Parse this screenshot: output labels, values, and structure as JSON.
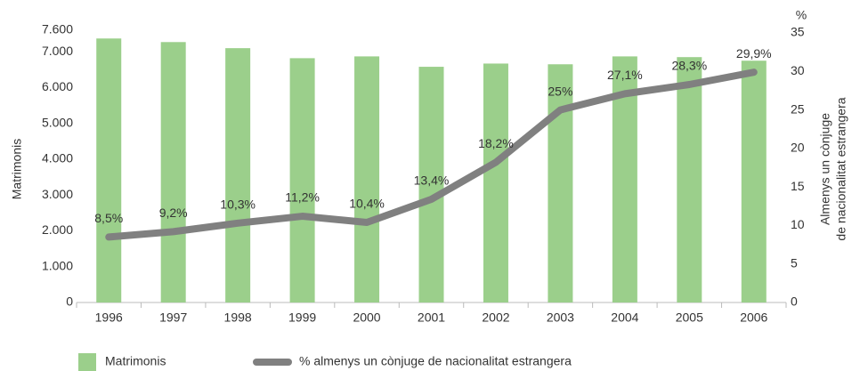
{
  "chart_data": {
    "type": "bar_line",
    "categories": [
      "1996",
      "1997",
      "1998",
      "1999",
      "2000",
      "2001",
      "2002",
      "2003",
      "2004",
      "2005",
      "2006"
    ],
    "series": [
      {
        "name": "Matrimonis",
        "type": "bar",
        "color": "#9bcf8b",
        "values": [
          7370,
          7270,
          7100,
          6820,
          6870,
          6580,
          6670,
          6650,
          6870,
          6850,
          6750
        ]
      },
      {
        "name": "% almenys un cònjuge de nacionalitat estrangera",
        "type": "line",
        "axis": "y2",
        "color": "#808080",
        "values": [
          8.5,
          9.2,
          10.3,
          11.2,
          10.4,
          13.4,
          18.2,
          25,
          27.1,
          28.3,
          29.9
        ],
        "value_labels": [
          "8,5%",
          "9,2%",
          "10,3%",
          "11,2%",
          "10,4%",
          "13,4%",
          "18,2%",
          "25%",
          "27,1%",
          "28,3%",
          "29,9%"
        ]
      }
    ],
    "ylabel": "Matrimonis",
    "y2label": [
      "Almenys un cònjuge",
      "de nacionalitat estrangera"
    ],
    "y2unit": "%",
    "ylim": [
      0,
      7600
    ],
    "yticks": [
      0,
      {
        "value": 1000,
        "label": "1.000"
      },
      {
        "value": 2000,
        "label": "2.000"
      },
      {
        "value": 3000,
        "label": "3.000"
      },
      {
        "value": 4000,
        "label": "4.000"
      },
      {
        "value": 5000,
        "label": "5.000"
      },
      {
        "value": 6000,
        "label": "6.000"
      },
      {
        "value": 7000,
        "label": "7.000"
      },
      {
        "value": 7600,
        "label": "7.600"
      }
    ],
    "y2lim": [
      0,
      35
    ],
    "y2ticks": [
      0,
      5,
      10,
      15,
      20,
      25,
      30,
      35
    ],
    "grid": false
  }
}
